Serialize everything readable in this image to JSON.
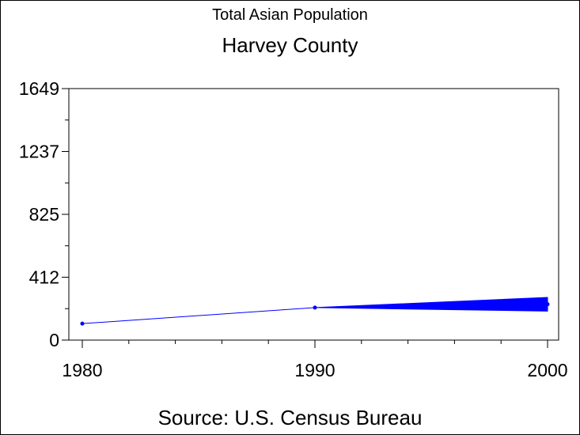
{
  "chart_data": {
    "type": "line",
    "title": "Total Asian Population",
    "subtitle": "Harvey County",
    "footnote": "Source: U.S. Census Bureau",
    "x": [
      1980,
      1990,
      2000
    ],
    "series": [
      {
        "values": [
          108,
          213,
          235
        ],
        "range_2000": [
          190,
          280
        ],
        "color": "#0000ff"
      }
    ],
    "xlim": [
      1980,
      2000
    ],
    "ylim": [
      0,
      1649
    ],
    "x_ticks": [
      "1980",
      "1990",
      "2000"
    ],
    "y_ticks": [
      "0",
      "412",
      "825",
      "1237",
      "1649"
    ],
    "grid": false,
    "legend": "none"
  }
}
